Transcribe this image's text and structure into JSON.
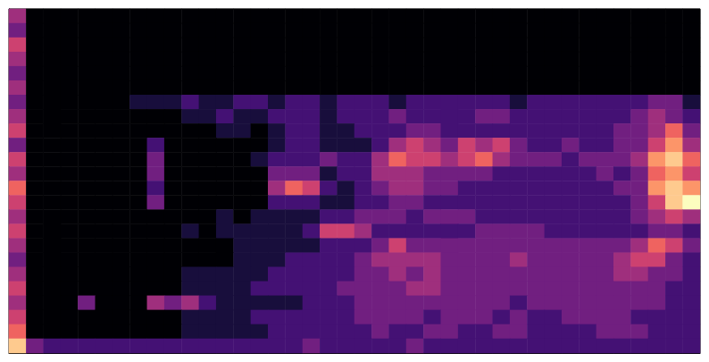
{
  "chart_data": {
    "type": "heatmap",
    "color": "magma",
    "tick_labels": false,
    "zlim": [
      0,
      9
    ],
    "cells": [
      [
        4,
        0,
        0,
        0,
        0,
        0,
        0,
        0,
        0,
        0,
        0,
        0,
        0,
        0,
        0,
        0,
        0,
        0,
        0,
        0,
        0,
        0,
        0,
        0,
        0,
        0,
        0,
        0,
        0,
        0,
        0,
        0,
        0,
        0,
        0,
        0,
        0,
        0,
        0,
        0
      ],
      [
        3,
        0,
        0,
        0,
        0,
        0,
        0,
        0,
        0,
        0,
        0,
        0,
        0,
        0,
        0,
        0,
        0,
        0,
        0,
        0,
        0,
        0,
        0,
        0,
        0,
        0,
        0,
        0,
        0,
        0,
        0,
        0,
        0,
        0,
        0,
        0,
        0,
        0,
        0,
        0
      ],
      [
        5,
        0,
        0,
        0,
        0,
        0,
        0,
        0,
        0,
        0,
        0,
        0,
        0,
        0,
        0,
        0,
        0,
        0,
        0,
        0,
        0,
        0,
        0,
        0,
        0,
        0,
        0,
        0,
        0,
        0,
        0,
        0,
        0,
        0,
        0,
        0,
        0,
        0,
        0,
        0
      ],
      [
        4,
        0,
        0,
        0,
        0,
        0,
        0,
        0,
        0,
        0,
        0,
        0,
        0,
        0,
        0,
        0,
        0,
        0,
        0,
        0,
        0,
        0,
        0,
        0,
        0,
        0,
        0,
        0,
        0,
        0,
        0,
        0,
        0,
        0,
        0,
        0,
        0,
        0,
        0,
        0
      ],
      [
        3,
        0,
        0,
        0,
        0,
        0,
        0,
        0,
        0,
        0,
        0,
        0,
        0,
        0,
        0,
        0,
        0,
        0,
        0,
        0,
        0,
        0,
        0,
        0,
        0,
        0,
        0,
        0,
        0,
        0,
        0,
        0,
        0,
        0,
        0,
        0,
        0,
        0,
        0,
        0
      ],
      [
        4,
        0,
        0,
        0,
        0,
        0,
        0,
        0,
        0,
        0,
        0,
        0,
        0,
        0,
        0,
        0,
        0,
        0,
        0,
        0,
        0,
        0,
        0,
        0,
        0,
        0,
        0,
        0,
        0,
        0,
        0,
        0,
        0,
        0,
        0,
        0,
        0,
        0,
        0,
        0
      ],
      [
        3,
        0,
        0,
        0,
        0,
        0,
        0,
        1,
        1,
        1,
        2,
        1,
        1,
        2,
        2,
        1,
        2,
        2,
        1,
        2,
        2,
        2,
        1,
        2,
        2,
        2,
        2,
        2,
        2,
        1,
        2,
        2,
        2,
        2,
        2,
        2,
        2,
        3,
        3,
        1
      ],
      [
        4,
        0,
        0,
        0,
        0,
        0,
        0,
        0,
        0,
        0,
        1,
        1,
        2,
        1,
        1,
        2,
        2,
        2,
        1,
        2,
        2,
        2,
        3,
        2,
        2,
        2,
        2,
        3,
        3,
        2,
        2,
        2,
        2,
        2,
        2,
        2,
        3,
        4,
        3,
        2
      ],
      [
        5,
        0,
        0,
        0,
        0,
        0,
        0,
        0,
        0,
        0,
        0,
        0,
        1,
        1,
        0,
        1,
        2,
        2,
        1,
        1,
        2,
        2,
        2,
        3,
        3,
        2,
        2,
        2,
        2,
        2,
        2,
        2,
        2,
        2,
        2,
        3,
        3,
        4,
        6,
        3
      ],
      [
        3,
        0,
        0,
        0,
        0,
        0,
        0,
        0,
        2,
        0,
        0,
        0,
        0,
        0,
        0,
        1,
        2,
        2,
        1,
        1,
        1,
        2,
        4,
        5,
        4,
        3,
        5,
        4,
        5,
        3,
        2,
        2,
        3,
        2,
        2,
        3,
        3,
        5,
        7,
        4
      ],
      [
        5,
        0,
        0,
        0,
        0,
        0,
        0,
        0,
        3,
        0,
        0,
        0,
        0,
        0,
        1,
        2,
        2,
        2,
        3,
        2,
        2,
        4,
        6,
        5,
        5,
        4,
        5,
        6,
        4,
        3,
        3,
        3,
        2,
        3,
        3,
        3,
        4,
        7,
        8,
        6
      ],
      [
        4,
        0,
        0,
        0,
        0,
        0,
        0,
        0,
        3,
        0,
        0,
        0,
        0,
        0,
        0,
        3,
        3,
        3,
        1,
        2,
        2,
        4,
        4,
        4,
        3,
        3,
        3,
        3,
        2,
        2,
        2,
        2,
        2,
        2,
        3,
        2,
        3,
        6,
        7,
        5
      ],
      [
        6,
        0,
        0,
        0,
        0,
        0,
        0,
        0,
        2,
        0,
        0,
        0,
        0,
        0,
        0,
        4,
        6,
        5,
        2,
        1,
        2,
        3,
        4,
        4,
        3,
        3,
        2,
        2,
        2,
        2,
        2,
        2,
        2,
        2,
        2,
        3,
        3,
        7,
        8,
        7
      ],
      [
        5,
        0,
        0,
        0,
        0,
        0,
        0,
        0,
        3,
        0,
        0,
        0,
        0,
        0,
        0,
        2,
        2,
        2,
        1,
        1,
        2,
        2,
        3,
        3,
        2,
        2,
        2,
        2,
        2,
        2,
        2,
        2,
        2,
        2,
        2,
        2,
        3,
        5,
        8,
        9
      ],
      [
        4,
        0,
        0,
        0,
        0,
        0,
        0,
        0,
        0,
        0,
        0,
        0,
        1,
        0,
        1,
        1,
        1,
        1,
        2,
        2,
        3,
        3,
        3,
        2,
        3,
        3,
        3,
        2,
        2,
        2,
        2,
        2,
        2,
        2,
        2,
        2,
        3,
        4,
        5,
        4
      ],
      [
        5,
        0,
        0,
        0,
        0,
        0,
        0,
        0,
        0,
        0,
        1,
        0,
        1,
        1,
        1,
        1,
        1,
        2,
        5,
        5,
        4,
        2,
        2,
        2,
        2,
        2,
        2,
        3,
        3,
        3,
        3,
        2,
        2,
        2,
        2,
        2,
        2,
        3,
        3,
        2
      ],
      [
        4,
        0,
        0,
        0,
        0,
        0,
        0,
        0,
        0,
        0,
        0,
        0,
        0,
        1,
        1,
        1,
        1,
        1,
        2,
        2,
        2,
        3,
        5,
        3,
        3,
        3,
        3,
        3,
        3,
        3,
        3,
        3,
        3,
        3,
        3,
        3,
        4,
        6,
        5,
        3
      ],
      [
        3,
        0,
        0,
        0,
        0,
        0,
        0,
        0,
        0,
        0,
        0,
        0,
        0,
        1,
        1,
        1,
        2,
        2,
        2,
        2,
        3,
        4,
        4,
        4,
        4,
        3,
        3,
        3,
        3,
        4,
        3,
        3,
        3,
        3,
        3,
        4,
        5,
        5,
        3,
        2
      ],
      [
        4,
        0,
        0,
        0,
        0,
        0,
        0,
        0,
        0,
        0,
        1,
        1,
        1,
        1,
        1,
        2,
        2,
        2,
        2,
        2,
        3,
        3,
        4,
        3,
        4,
        3,
        3,
        3,
        3,
        3,
        3,
        3,
        3,
        3,
        3,
        4,
        4,
        3,
        3,
        2
      ],
      [
        5,
        0,
        0,
        0,
        0,
        0,
        0,
        0,
        0,
        0,
        1,
        1,
        1,
        1,
        2,
        2,
        2,
        2,
        2,
        3,
        3,
        3,
        3,
        4,
        4,
        3,
        3,
        3,
        3,
        3,
        3,
        3,
        3,
        3,
        3,
        3,
        3,
        3,
        2,
        2
      ],
      [
        4,
        0,
        0,
        0,
        3,
        0,
        0,
        0,
        4,
        3,
        4,
        2,
        1,
        1,
        1,
        1,
        1,
        2,
        2,
        2,
        3,
        3,
        3,
        3,
        3,
        3,
        3,
        3,
        3,
        2,
        3,
        3,
        3,
        3,
        3,
        3,
        3,
        3,
        2,
        2
      ],
      [
        5,
        0,
        0,
        0,
        0,
        0,
        0,
        0,
        0,
        0,
        1,
        1,
        1,
        1,
        2,
        2,
        2,
        2,
        2,
        2,
        3,
        3,
        3,
        3,
        2,
        3,
        3,
        3,
        2,
        3,
        2,
        2,
        3,
        3,
        3,
        3,
        2,
        2,
        2,
        2
      ],
      [
        6,
        0,
        0,
        0,
        0,
        0,
        0,
        0,
        0,
        0,
        1,
        1,
        1,
        1,
        1,
        2,
        2,
        2,
        2,
        2,
        2,
        3,
        2,
        2,
        3,
        3,
        2,
        2,
        3,
        3,
        2,
        2,
        2,
        2,
        3,
        3,
        3,
        2,
        2,
        2
      ],
      [
        8,
        3,
        2,
        2,
        2,
        2,
        2,
        2,
        2,
        2,
        2,
        2,
        2,
        2,
        2,
        2,
        2,
        3,
        2,
        2,
        2,
        2,
        2,
        3,
        2,
        2,
        2,
        2,
        2,
        2,
        2,
        2,
        2,
        2,
        2,
        2,
        2,
        2,
        2,
        2
      ]
    ]
  }
}
